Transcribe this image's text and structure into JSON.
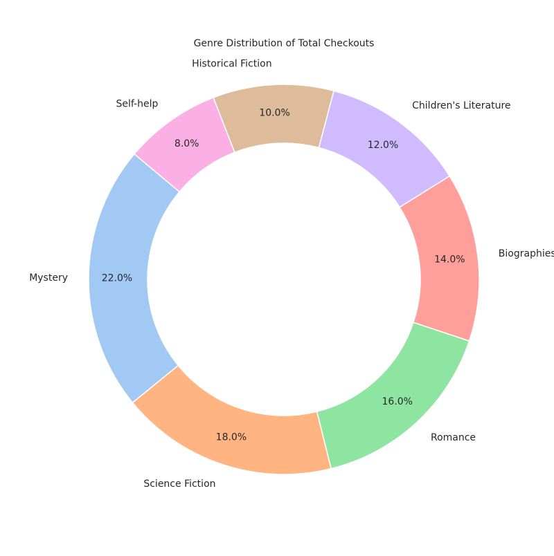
{
  "chart_data": {
    "type": "pie",
    "title": "Genre Distribution of Total Checkouts",
    "donut": true,
    "start_angle": 140,
    "direction": "counterclockwise",
    "slices": [
      {
        "label": "Mystery",
        "value": 22.0,
        "pct_label": "22.0%",
        "color": "#a1c9f4"
      },
      {
        "label": "Science Fiction",
        "value": 18.0,
        "pct_label": "18.0%",
        "color": "#ffb482"
      },
      {
        "label": "Romance",
        "value": 16.0,
        "pct_label": "16.0%",
        "color": "#8de5a1"
      },
      {
        "label": "Biographies",
        "value": 14.0,
        "pct_label": "14.0%",
        "color": "#ff9f9b"
      },
      {
        "label": "Children's Literature",
        "value": 12.0,
        "pct_label": "12.0%",
        "color": "#d0bbff"
      },
      {
        "label": "Historical Fiction",
        "value": 10.0,
        "pct_label": "10.0%",
        "color": "#debb9b"
      },
      {
        "label": "Self-help",
        "value": 8.0,
        "pct_label": "8.0%",
        "color": "#fab0e4"
      }
    ]
  }
}
